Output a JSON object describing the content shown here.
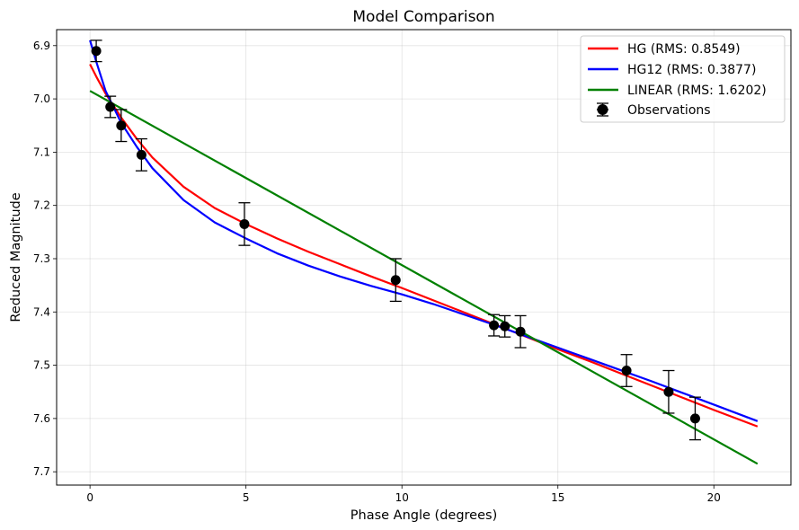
{
  "chart_data": {
    "type": "line",
    "title": "Model Comparison",
    "xlabel": "Phase Angle (degrees)",
    "ylabel": "Reduced Magnitude",
    "xlim": [
      -1.07,
      22.47
    ],
    "ylim": [
      7.725,
      6.87
    ],
    "y_inverted": true,
    "x_ticks": [
      0,
      5,
      10,
      15,
      20
    ],
    "y_ticks": [
      6.9,
      7.0,
      7.1,
      7.2,
      7.3,
      7.4,
      7.5,
      7.6,
      7.7
    ],
    "grid": true,
    "legend_position": "top-right",
    "series": [
      {
        "name": "HG (RMS: 0.8549)",
        "color": "#ff0000",
        "x": [
          0.0,
          0.2,
          0.5,
          1.0,
          1.5,
          2.0,
          3.0,
          4.0,
          5.0,
          6.0,
          7.0,
          8.0,
          9.0,
          10.0,
          11.0,
          12.0,
          13.0,
          14.0,
          15.0,
          16.0,
          17.0,
          18.0,
          19.0,
          20.0,
          21.4
        ],
        "y": [
          6.935,
          6.958,
          6.99,
          7.035,
          7.075,
          7.11,
          7.165,
          7.205,
          7.235,
          7.262,
          7.287,
          7.31,
          7.333,
          7.355,
          7.378,
          7.401,
          7.424,
          7.447,
          7.47,
          7.492,
          7.515,
          7.538,
          7.561,
          7.584,
          7.615
        ]
      },
      {
        "name": "HG12 (RMS: 0.3877)",
        "color": "#0000ff",
        "x": [
          0.0,
          0.2,
          0.5,
          1.0,
          1.5,
          2.0,
          3.0,
          4.0,
          5.0,
          6.0,
          7.0,
          8.0,
          9.0,
          10.0,
          11.0,
          12.0,
          13.0,
          14.0,
          15.0,
          16.0,
          17.0,
          18.0,
          19.0,
          20.0,
          21.4
        ],
        "y": [
          6.89,
          6.93,
          6.985,
          7.045,
          7.09,
          7.13,
          7.19,
          7.232,
          7.262,
          7.29,
          7.313,
          7.333,
          7.351,
          7.367,
          7.385,
          7.405,
          7.425,
          7.446,
          7.467,
          7.488,
          7.509,
          7.53,
          7.552,
          7.574,
          7.605
        ]
      },
      {
        "name": "LINEAR (RMS: 1.6202)",
        "color": "#008000",
        "x": [
          0.0,
          21.4
        ],
        "y": [
          6.985,
          7.685
        ]
      }
    ],
    "observations": {
      "name": "Observations",
      "color": "#000000",
      "x": [
        0.2,
        0.65,
        1.0,
        1.65,
        4.95,
        9.8,
        12.95,
        13.3,
        13.8,
        17.2,
        18.55,
        19.4
      ],
      "y": [
        6.91,
        7.015,
        7.05,
        7.105,
        7.235,
        7.34,
        7.425,
        7.427,
        7.437,
        7.51,
        7.55,
        7.6
      ],
      "error": [
        0.02,
        0.02,
        0.03,
        0.03,
        0.04,
        0.04,
        0.02,
        0.02,
        0.03,
        0.03,
        0.04,
        0.04
      ]
    }
  }
}
